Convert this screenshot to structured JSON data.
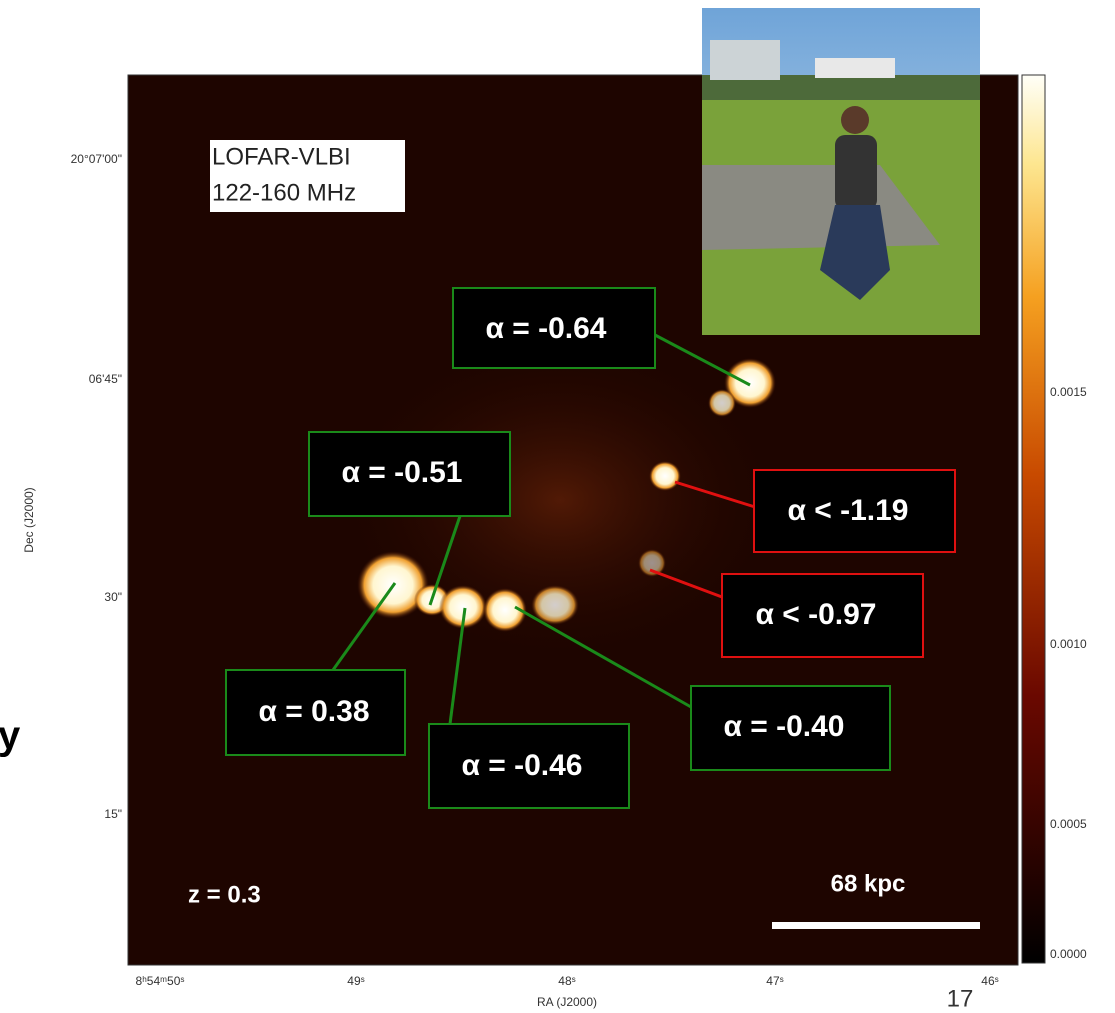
{
  "overlay_label": [
    "LOFAR-VLBI",
    "122-160 MHz"
  ],
  "annotations": [
    "α = -0.64",
    "α = -0.51",
    "α < -1.19",
    "α < -0.97",
    "α = 0.38",
    "α = -0.46",
    "α = -0.40"
  ],
  "axes": {
    "y_ticks": [
      "20°07'00\"",
      "06'45\"",
      "30\"",
      "15\""
    ],
    "y_label": "Dec (J2000)",
    "x_ticks": [
      "8ʰ54ᵐ50ˢ",
      "49ˢ",
      "48ˢ",
      "47ˢ",
      "46ˢ"
    ],
    "x_label": "RA (J2000)"
  },
  "colorbar_ticks": [
    "0.0015",
    "0.0010",
    "0.0005",
    "0.0000"
  ],
  "redshift": "z = 0.3",
  "scale_bar": "68 kpc",
  "page_number": "17",
  "cut_text": "y"
}
